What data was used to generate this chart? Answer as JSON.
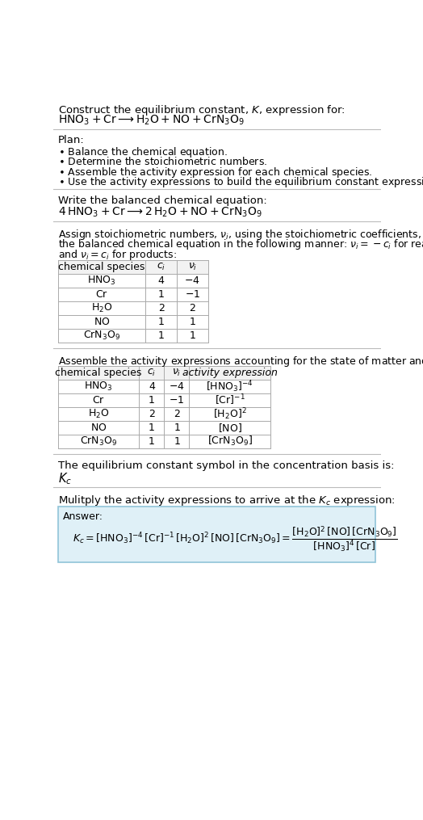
{
  "title_line1": "Construct the equilibrium constant, $K$, expression for:",
  "title_line2": "$\\mathrm{HNO_3 + Cr \\longrightarrow H_2O + NO + CrN_3O_9}$",
  "plan_header": "Plan:",
  "plan_items": [
    "$\\bullet$ Balance the chemical equation.",
    "$\\bullet$ Determine the stoichiometric numbers.",
    "$\\bullet$ Assemble the activity expression for each chemical species.",
    "$\\bullet$ Use the activity expressions to build the equilibrium constant expression."
  ],
  "balanced_header": "Write the balanced chemical equation:",
  "balanced_eq": "$4\\,\\mathrm{HNO_3 + Cr \\longrightarrow 2\\,H_2O + NO + CrN_3O_9}$",
  "stoich_header_parts": [
    "Assign stoichiometric numbers, $\\nu_i$, using the stoichiometric coefficients, $c_i$, from",
    "the balanced chemical equation in the following manner: $\\nu_i = -c_i$ for reactants",
    "and $\\nu_i = c_i$ for products:"
  ],
  "table1_cols": [
    "chemical species",
    "$c_i$",
    "$\\nu_i$"
  ],
  "table1_rows": [
    [
      "$\\mathrm{HNO_3}$",
      "4",
      "$-4$"
    ],
    [
      "$\\mathrm{Cr}$",
      "1",
      "$-1$"
    ],
    [
      "$\\mathrm{H_2O}$",
      "2",
      "$2$"
    ],
    [
      "$\\mathrm{NO}$",
      "1",
      "$1$"
    ],
    [
      "$\\mathrm{CrN_3O_9}$",
      "1",
      "$1$"
    ]
  ],
  "activity_header": "Assemble the activity expressions accounting for the state of matter and $\\nu_i$:",
  "table2_cols": [
    "chemical species",
    "$c_i$",
    "$\\nu_i$",
    "activity expression"
  ],
  "table2_rows": [
    [
      "$\\mathrm{HNO_3}$",
      "4",
      "$-4$",
      "$[\\mathrm{HNO_3}]^{-4}$"
    ],
    [
      "$\\mathrm{Cr}$",
      "1",
      "$-1$",
      "$[\\mathrm{Cr}]^{-1}$"
    ],
    [
      "$\\mathrm{H_2O}$",
      "2",
      "$2$",
      "$[\\mathrm{H_2O}]^{2}$"
    ],
    [
      "$\\mathrm{NO}$",
      "1",
      "$1$",
      "$[\\mathrm{NO}]$"
    ],
    [
      "$\\mathrm{CrN_3O_9}$",
      "1",
      "$1$",
      "$[\\mathrm{CrN_3O_9}]$"
    ]
  ],
  "kc_header": "The equilibrium constant symbol in the concentration basis is:",
  "kc_symbol": "$K_c$",
  "multiply_header": "Mulitply the activity expressions to arrive at the $K_c$ expression:",
  "answer_label": "Answer:",
  "answer_eq": "$K_c = [\\mathrm{HNO_3}]^{-4}\\,[\\mathrm{Cr}]^{-1}\\,[\\mathrm{H_2O}]^2\\,[\\mathrm{NO}]\\,[\\mathrm{CrN_3O_9}] = \\dfrac{[\\mathrm{H_2O}]^2\\,[\\mathrm{NO}]\\,[\\mathrm{CrN_3O_9}]}{[\\mathrm{HNO_3}]^4\\,[\\mathrm{Cr}]}$",
  "bg_color": "#ffffff",
  "text_color": "#000000",
  "table_header_bg": "#f2f2f2",
  "answer_box_bg": "#dff0f7",
  "answer_box_border": "#90c4d8",
  "divider_color": "#bbbbbb",
  "font_size": 9.5,
  "small_font": 9.0,
  "table_font": 9.0
}
